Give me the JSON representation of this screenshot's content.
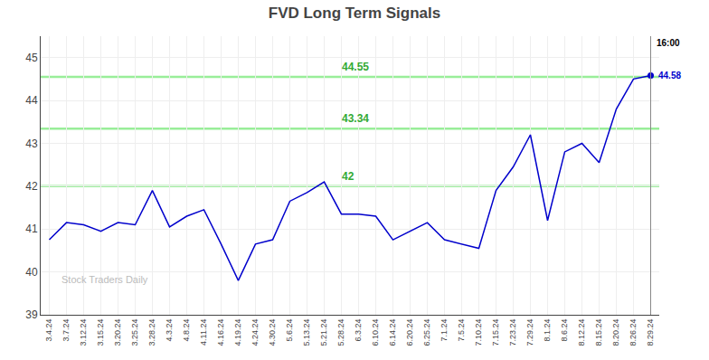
{
  "chart_data": {
    "type": "line",
    "title": "FVD Long Term Signals",
    "categories": [
      "3.4.24",
      "3.7.24",
      "3.12.24",
      "3.15.24",
      "3.20.24",
      "3.25.24",
      "3.28.24",
      "4.3.24",
      "4.8.24",
      "4.11.24",
      "4.16.24",
      "4.19.24",
      "4.24.24",
      "4.30.24",
      "5.6.24",
      "5.13.24",
      "5.21.24",
      "5.28.24",
      "6.3.24",
      "6.10.24",
      "6.14.24",
      "6.20.24",
      "6.25.24",
      "7.1.24",
      "7.5.24",
      "7.10.24",
      "7.15.24",
      "7.23.24",
      "7.29.24",
      "8.1.24",
      "8.6.24",
      "8.12.24",
      "8.15.24",
      "8.20.24",
      "8.26.24",
      "8.29.24"
    ],
    "values": [
      40.75,
      41.15,
      41.1,
      40.95,
      41.15,
      41.1,
      41.9,
      41.05,
      41.3,
      41.45,
      40.65,
      39.8,
      40.65,
      40.75,
      41.65,
      41.85,
      42.1,
      41.35,
      41.35,
      41.3,
      40.75,
      40.95,
      41.15,
      40.75,
      40.65,
      40.55,
      41.9,
      42.45,
      43.2,
      41.2,
      42.8,
      43.0,
      42.55,
      43.8,
      44.5,
      44.58
    ],
    "color": "#0000cc",
    "ylim": [
      39,
      45.5
    ],
    "yticks": [
      39,
      40,
      41,
      42,
      43,
      44,
      45
    ],
    "grid": true,
    "hlines": [
      {
        "y": 44.55,
        "label": "44.55",
        "color": "#99ee99",
        "label_color": "#33aa33"
      },
      {
        "y": 43.34,
        "label": "43.34",
        "color": "#99ee99",
        "label_color": "#33aa33"
      },
      {
        "y": 42.0,
        "label": "42",
        "color": "#99ee99",
        "label_color": "#33aa33"
      }
    ],
    "last_point": {
      "value": 44.58,
      "label": "44.58",
      "time_label": "16:00"
    },
    "watermark": {
      "text": "Stock Traders Daily",
      "color": "#bbbbbb"
    }
  }
}
